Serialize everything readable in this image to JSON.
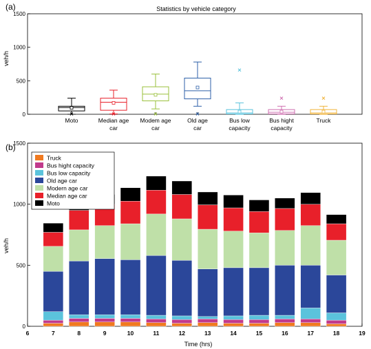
{
  "chart_data": [
    {
      "panel_label": "(a)",
      "type": "boxplot",
      "title": "Statistics by vehicle category",
      "ylabel": "veh/h",
      "ylim": [
        0,
        1500
      ],
      "yticks": [
        0,
        500,
        1000,
        1500
      ],
      "grid": false,
      "categories": [
        {
          "lines": [
            "Moto"
          ],
          "color": "#000000",
          "min": 0,
          "q1": 50,
          "median": 100,
          "q3": 120,
          "max": 240,
          "mean": 95,
          "outliers": [
            5
          ]
        },
        {
          "lines": [
            "Median age",
            "car"
          ],
          "color": "#e8202a",
          "min": 5,
          "q1": 60,
          "median": 180,
          "q3": 240,
          "max": 360,
          "mean": 170,
          "outliers": [
            5
          ]
        },
        {
          "lines": [
            "Modem age",
            "car"
          ],
          "color": "#9ac03b",
          "min": 80,
          "q1": 200,
          "median": 300,
          "q3": 410,
          "max": 600,
          "mean": 290,
          "outliers": [
            5
          ]
        },
        {
          "lines": [
            "Old age",
            "car"
          ],
          "color": "#2c5fa8",
          "min": 120,
          "q1": 230,
          "median": 350,
          "q3": 540,
          "max": 780,
          "mean": 400,
          "outliers": [
            5
          ]
        },
        {
          "lines": [
            "Bus low",
            "capacity"
          ],
          "color": "#5bc3dc",
          "min": 0,
          "q1": 5,
          "median": 20,
          "q3": 70,
          "max": 170,
          "mean": 40,
          "outliers": [
            660
          ]
        },
        {
          "lines": [
            "Bus hight",
            "capacity"
          ],
          "color": "#cf6fb0",
          "min": 0,
          "q1": 5,
          "median": 30,
          "q3": 70,
          "max": 120,
          "mean": 40,
          "outliers": [
            240
          ]
        },
        {
          "lines": [
            "Truck"
          ],
          "color": "#f0b43c",
          "min": 0,
          "q1": 5,
          "median": 20,
          "q3": 70,
          "max": 120,
          "mean": 40,
          "outliers": [
            240
          ]
        }
      ]
    },
    {
      "panel_label": "(b)",
      "type": "stacked_bar",
      "xlabel": "Time (hrs)",
      "ylabel": "veh/h",
      "xlim": [
        6,
        19
      ],
      "ylim": [
        0,
        1500
      ],
      "xticks": [
        6,
        7,
        8,
        9,
        10,
        11,
        12,
        13,
        14,
        15,
        16,
        17,
        18,
        19
      ],
      "yticks": [
        0,
        500,
        1000,
        1500
      ],
      "legend_position": "top-left",
      "x": [
        7,
        8,
        9,
        10,
        11,
        12,
        13,
        14,
        15,
        16,
        17,
        18
      ],
      "series": [
        {
          "name": "Truck",
          "color": "#f07a20",
          "values": [
            25,
            35,
            35,
            35,
            30,
            25,
            30,
            25,
            25,
            30,
            30,
            20
          ]
        },
        {
          "name": "Bus hight capacity",
          "color": "#c13a8c",
          "values": [
            25,
            30,
            30,
            30,
            30,
            30,
            30,
            30,
            30,
            30,
            30,
            30
          ]
        },
        {
          "name": "Bus low capacity",
          "color": "#5bc3dc",
          "values": [
            70,
            30,
            30,
            30,
            30,
            30,
            20,
            30,
            35,
            30,
            90,
            60
          ]
        },
        {
          "name": "Old age car",
          "color": "#2b479a",
          "values": [
            330,
            440,
            460,
            450,
            490,
            455,
            390,
            395,
            390,
            410,
            350,
            310
          ]
        },
        {
          "name": "Modern age car",
          "color": "#bfe0a8",
          "values": [
            205,
            255,
            270,
            295,
            340,
            340,
            325,
            300,
            285,
            285,
            325,
            285
          ]
        },
        {
          "name": "Median age car",
          "color": "#e8202a",
          "values": [
            115,
            160,
            175,
            185,
            195,
            200,
            200,
            190,
            175,
            180,
            175,
            135
          ]
        },
        {
          "name": "Moto",
          "color": "#000000",
          "values": [
            75,
            90,
            80,
            110,
            115,
            110,
            105,
            105,
            95,
            85,
            95,
            75
          ]
        }
      ]
    }
  ]
}
